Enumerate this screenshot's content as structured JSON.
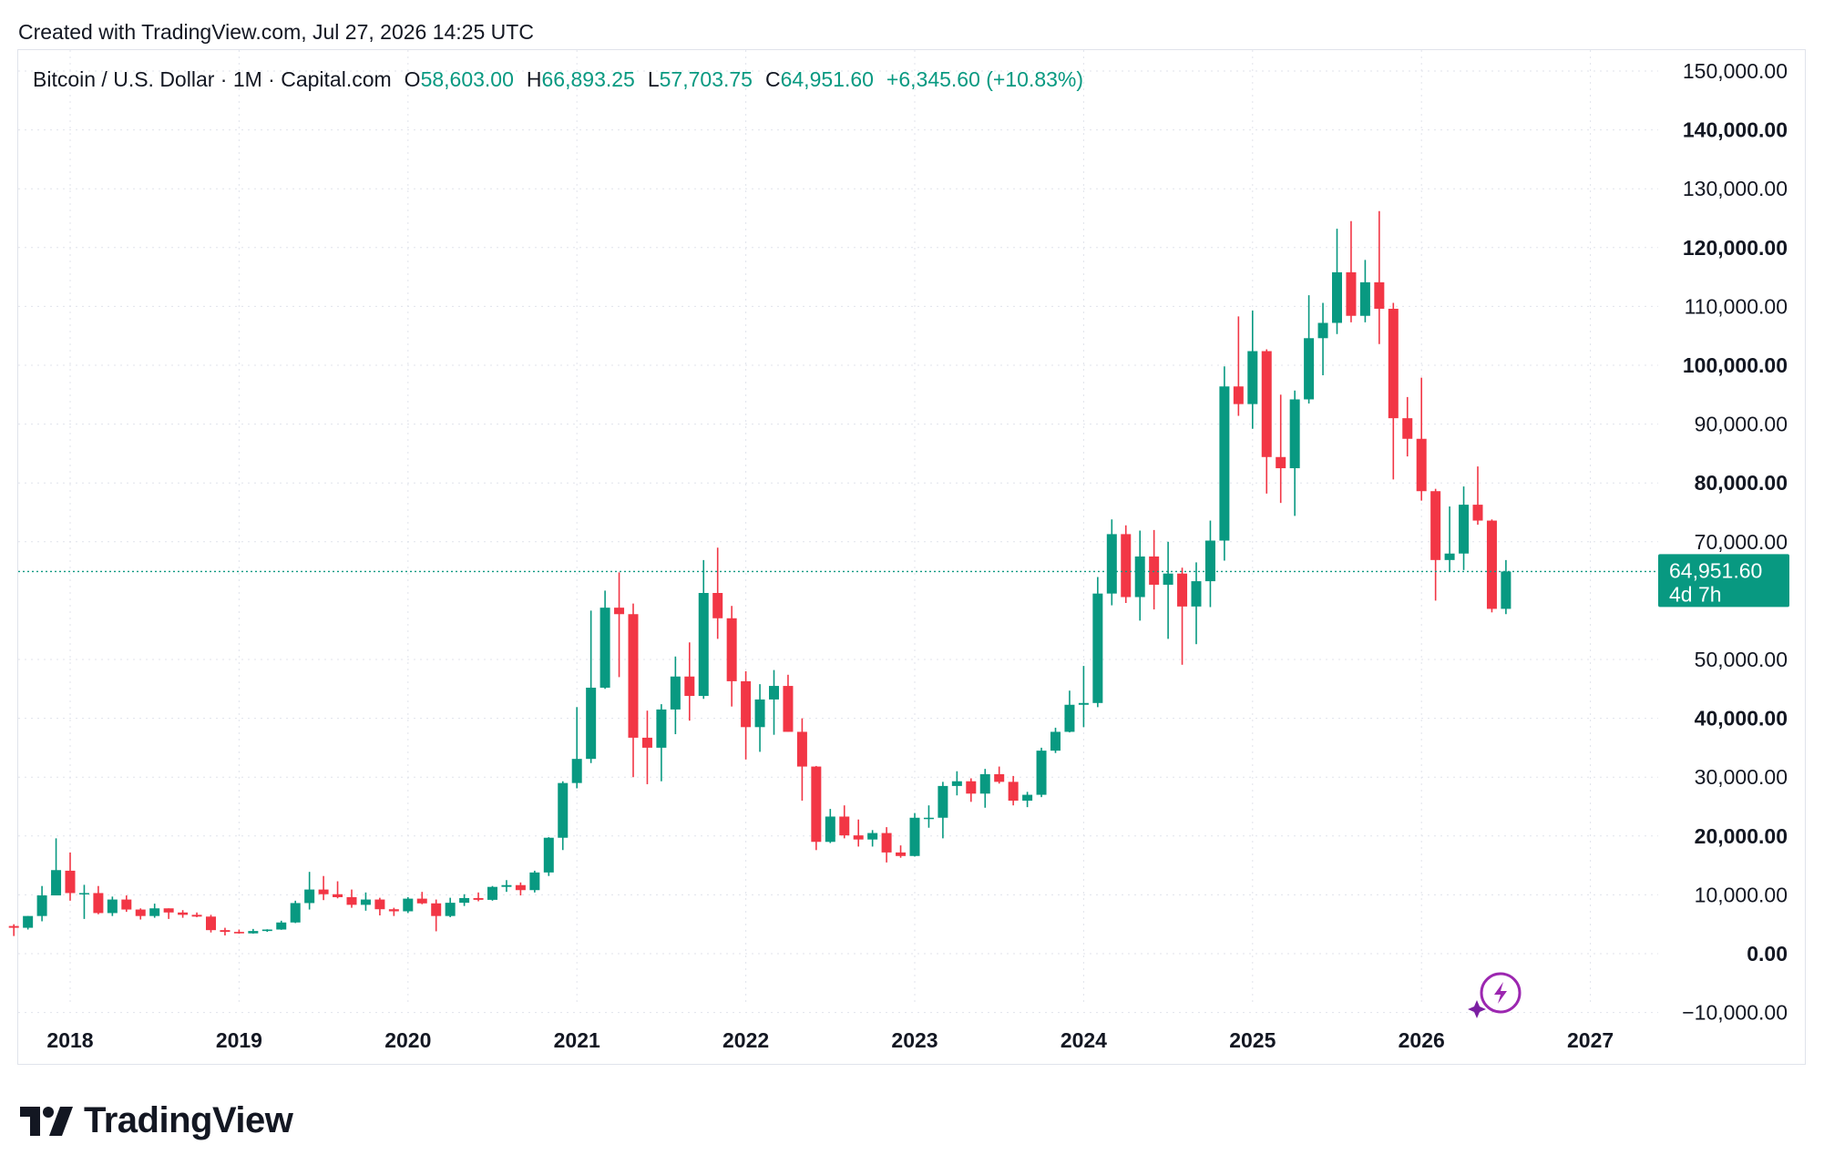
{
  "header": {
    "created": "Created with TradingView.com, Jul 27, 2026 14:25 UTC"
  },
  "legend": {
    "symbol": "Bitcoin / U.S. Dollar · 1M · Capital.com",
    "o_label": "O",
    "o_value": "58,603.00",
    "h_label": "H",
    "h_value": "66,893.25",
    "l_label": "L",
    "l_value": "57,703.75",
    "c_label": "C",
    "c_value": "64,951.60",
    "change": "+6,345.60 (+10.83%)"
  },
  "price_tag": {
    "price": "64,951.60",
    "countdown": "4d 7h"
  },
  "colors": {
    "up": "#089981",
    "down": "#f23645",
    "grid": "#e0e3eb",
    "text": "#131722",
    "assistant_icon": "#9c27b0"
  },
  "icons": {
    "assistant": "lightning-sparkle-icon",
    "brand": "tradingview-logo-icon"
  },
  "brand": {
    "name": "TradingView"
  },
  "chart_data": {
    "type": "candlestick",
    "title": "Bitcoin / U.S. Dollar · 1M · Capital.com",
    "ylim": [
      -10000,
      150000
    ],
    "yticks": [
      {
        "value": 150000,
        "label": "150,000.00",
        "bold": false
      },
      {
        "value": 140000,
        "label": "140,000.00",
        "bold": true
      },
      {
        "value": 130000,
        "label": "130,000.00",
        "bold": false
      },
      {
        "value": 120000,
        "label": "120,000.00",
        "bold": true
      },
      {
        "value": 110000,
        "label": "110,000.00",
        "bold": false
      },
      {
        "value": 100000,
        "label": "100,000.00",
        "bold": true
      },
      {
        "value": 90000,
        "label": "90,000.00",
        "bold": false
      },
      {
        "value": 80000,
        "label": "80,000.00",
        "bold": true
      },
      {
        "value": 70000,
        "label": "70,000.00",
        "bold": false
      },
      {
        "value": 50000,
        "label": "50,000.00",
        "bold": false
      },
      {
        "value": 40000,
        "label": "40,000.00",
        "bold": true
      },
      {
        "value": 30000,
        "label": "30,000.00",
        "bold": false
      },
      {
        "value": 20000,
        "label": "20,000.00",
        "bold": true
      },
      {
        "value": 10000,
        "label": "10,000.00",
        "bold": false
      },
      {
        "value": 0,
        "label": "0.00",
        "bold": true
      },
      {
        "value": -10000,
        "label": "−10,000.00",
        "bold": false
      }
    ],
    "xticks": [
      {
        "month": "2018-01",
        "label": "2018"
      },
      {
        "month": "2019-01",
        "label": "2019"
      },
      {
        "month": "2020-01",
        "label": "2020"
      },
      {
        "month": "2021-01",
        "label": "2021"
      },
      {
        "month": "2022-01",
        "label": "2022"
      },
      {
        "month": "2023-01",
        "label": "2023"
      },
      {
        "month": "2024-01",
        "label": "2024"
      },
      {
        "month": "2025-01",
        "label": "2025"
      },
      {
        "month": "2026-01",
        "label": "2026"
      },
      {
        "month": "2027-01",
        "label": "2027"
      }
    ],
    "last_price": 64951.6,
    "months_start": "2017-09",
    "candles": [
      {
        "m": "2017-09",
        "o": 4700,
        "h": 5000,
        "l": 3000,
        "c": 4400
      },
      {
        "m": "2017-10",
        "o": 4400,
        "h": 6400,
        "l": 4100,
        "c": 6400
      },
      {
        "m": "2017-11",
        "o": 6400,
        "h": 11500,
        "l": 5500,
        "c": 9900
      },
      {
        "m": "2017-12",
        "o": 9900,
        "h": 19600,
        "l": 10500,
        "c": 14200
      },
      {
        "m": "2018-01",
        "o": 14100,
        "h": 17200,
        "l": 9000,
        "c": 10300
      },
      {
        "m": "2018-02",
        "o": 10200,
        "h": 11700,
        "l": 5900,
        "c": 10300
      },
      {
        "m": "2018-03",
        "o": 10300,
        "h": 11500,
        "l": 6700,
        "c": 6900
      },
      {
        "m": "2018-04",
        "o": 6900,
        "h": 9700,
        "l": 6400,
        "c": 9200
      },
      {
        "m": "2018-05",
        "o": 9200,
        "h": 9900,
        "l": 7100,
        "c": 7500
      },
      {
        "m": "2018-06",
        "o": 7500,
        "h": 7700,
        "l": 5800,
        "c": 6400
      },
      {
        "m": "2018-07",
        "o": 6400,
        "h": 8500,
        "l": 6100,
        "c": 7700
      },
      {
        "m": "2018-08",
        "o": 7700,
        "h": 7700,
        "l": 5900,
        "c": 7000
      },
      {
        "m": "2018-09",
        "o": 7000,
        "h": 7400,
        "l": 6100,
        "c": 6600
      },
      {
        "m": "2018-10",
        "o": 6600,
        "h": 7000,
        "l": 6200,
        "c": 6300
      },
      {
        "m": "2018-11",
        "o": 6300,
        "h": 6600,
        "l": 3600,
        "c": 4000
      },
      {
        "m": "2018-12",
        "o": 4000,
        "h": 4400,
        "l": 3100,
        "c": 3700
      },
      {
        "m": "2019-01",
        "o": 3700,
        "h": 4100,
        "l": 3400,
        "c": 3450
      },
      {
        "m": "2019-02",
        "o": 3450,
        "h": 4200,
        "l": 3400,
        "c": 3850
      },
      {
        "m": "2019-03",
        "o": 3850,
        "h": 4150,
        "l": 3700,
        "c": 4100
      },
      {
        "m": "2019-04",
        "o": 4100,
        "h": 5600,
        "l": 4050,
        "c": 5300
      },
      {
        "m": "2019-05",
        "o": 5300,
        "h": 9000,
        "l": 5200,
        "c": 8600
      },
      {
        "m": "2019-06",
        "o": 8600,
        "h": 13900,
        "l": 7500,
        "c": 10900
      },
      {
        "m": "2019-07",
        "o": 10900,
        "h": 13200,
        "l": 9100,
        "c": 10100
      },
      {
        "m": "2019-08",
        "o": 10100,
        "h": 12300,
        "l": 9400,
        "c": 9600
      },
      {
        "m": "2019-09",
        "o": 9600,
        "h": 10900,
        "l": 7800,
        "c": 8300
      },
      {
        "m": "2019-10",
        "o": 8300,
        "h": 10400,
        "l": 7300,
        "c": 9200
      },
      {
        "m": "2019-11",
        "o": 9200,
        "h": 9500,
        "l": 6500,
        "c": 7550
      },
      {
        "m": "2019-12",
        "o": 7550,
        "h": 7800,
        "l": 6400,
        "c": 7200
      },
      {
        "m": "2020-01",
        "o": 7200,
        "h": 9600,
        "l": 6900,
        "c": 9350
      },
      {
        "m": "2020-02",
        "o": 9350,
        "h": 10500,
        "l": 8400,
        "c": 8550
      },
      {
        "m": "2020-03",
        "o": 8550,
        "h": 9200,
        "l": 3800,
        "c": 6400
      },
      {
        "m": "2020-04",
        "o": 6400,
        "h": 9500,
        "l": 6200,
        "c": 8650
      },
      {
        "m": "2020-05",
        "o": 8650,
        "h": 10100,
        "l": 8100,
        "c": 9450
      },
      {
        "m": "2020-06",
        "o": 9450,
        "h": 10400,
        "l": 8900,
        "c": 9150
      },
      {
        "m": "2020-07",
        "o": 9150,
        "h": 11500,
        "l": 9000,
        "c": 11350
      },
      {
        "m": "2020-08",
        "o": 11350,
        "h": 12500,
        "l": 10500,
        "c": 11650
      },
      {
        "m": "2020-09",
        "o": 11650,
        "h": 12100,
        "l": 9900,
        "c": 10800
      },
      {
        "m": "2020-10",
        "o": 10800,
        "h": 14100,
        "l": 10400,
        "c": 13800
      },
      {
        "m": "2020-11",
        "o": 13800,
        "h": 19800,
        "l": 13200,
        "c": 19700
      },
      {
        "m": "2020-12",
        "o": 19700,
        "h": 29300,
        "l": 17600,
        "c": 29000
      },
      {
        "m": "2021-01",
        "o": 29000,
        "h": 41900,
        "l": 28100,
        "c": 33100
      },
      {
        "m": "2021-02",
        "o": 33100,
        "h": 58300,
        "l": 32400,
        "c": 45200
      },
      {
        "m": "2021-03",
        "o": 45200,
        "h": 61700,
        "l": 45000,
        "c": 58800
      },
      {
        "m": "2021-04",
        "o": 58800,
        "h": 64800,
        "l": 47000,
        "c": 57700
      },
      {
        "m": "2021-05",
        "o": 57700,
        "h": 59500,
        "l": 30000,
        "c": 36700
      },
      {
        "m": "2021-06",
        "o": 36700,
        "h": 41300,
        "l": 28800,
        "c": 35000
      },
      {
        "m": "2021-07",
        "o": 35000,
        "h": 42400,
        "l": 29300,
        "c": 41500
      },
      {
        "m": "2021-08",
        "o": 41500,
        "h": 50500,
        "l": 37300,
        "c": 47100
      },
      {
        "m": "2021-09",
        "o": 47100,
        "h": 52900,
        "l": 39600,
        "c": 43800
      },
      {
        "m": "2021-10",
        "o": 43800,
        "h": 66900,
        "l": 43300,
        "c": 61300
      },
      {
        "m": "2021-11",
        "o": 61300,
        "h": 69000,
        "l": 53500,
        "c": 57000
      },
      {
        "m": "2021-12",
        "o": 57000,
        "h": 59100,
        "l": 42000,
        "c": 46300
      },
      {
        "m": "2022-01",
        "o": 46300,
        "h": 48000,
        "l": 33000,
        "c": 38500
      },
      {
        "m": "2022-02",
        "o": 38500,
        "h": 45800,
        "l": 34300,
        "c": 43200
      },
      {
        "m": "2022-03",
        "o": 43200,
        "h": 48200,
        "l": 37200,
        "c": 45500
      },
      {
        "m": "2022-04",
        "o": 45500,
        "h": 47400,
        "l": 37700,
        "c": 37700
      },
      {
        "m": "2022-05",
        "o": 37700,
        "h": 40000,
        "l": 26000,
        "c": 31800
      },
      {
        "m": "2022-06",
        "o": 31800,
        "h": 31900,
        "l": 17600,
        "c": 19000
      },
      {
        "m": "2022-07",
        "o": 19000,
        "h": 24600,
        "l": 18800,
        "c": 23300
      },
      {
        "m": "2022-08",
        "o": 23300,
        "h": 25200,
        "l": 19600,
        "c": 20100
      },
      {
        "m": "2022-09",
        "o": 20100,
        "h": 22800,
        "l": 18200,
        "c": 19400
      },
      {
        "m": "2022-10",
        "o": 19400,
        "h": 21000,
        "l": 18200,
        "c": 20500
      },
      {
        "m": "2022-11",
        "o": 20500,
        "h": 21500,
        "l": 15500,
        "c": 17200
      },
      {
        "m": "2022-12",
        "o": 17200,
        "h": 18400,
        "l": 16300,
        "c": 16600
      },
      {
        "m": "2023-01",
        "o": 16600,
        "h": 23900,
        "l": 16500,
        "c": 23100
      },
      {
        "m": "2023-02",
        "o": 23100,
        "h": 25200,
        "l": 21400,
        "c": 23100
      },
      {
        "m": "2023-03",
        "o": 23100,
        "h": 29200,
        "l": 19600,
        "c": 28500
      },
      {
        "m": "2023-04",
        "o": 28500,
        "h": 31000,
        "l": 26900,
        "c": 29300
      },
      {
        "m": "2023-05",
        "o": 29300,
        "h": 29800,
        "l": 25800,
        "c": 27200
      },
      {
        "m": "2023-06",
        "o": 27200,
        "h": 31400,
        "l": 24800,
        "c": 30500
      },
      {
        "m": "2023-07",
        "o": 30500,
        "h": 31800,
        "l": 28900,
        "c": 29200
      },
      {
        "m": "2023-08",
        "o": 29200,
        "h": 30200,
        "l": 25200,
        "c": 26000
      },
      {
        "m": "2023-09",
        "o": 26000,
        "h": 27500,
        "l": 24900,
        "c": 27000
      },
      {
        "m": "2023-10",
        "o": 27000,
        "h": 35000,
        "l": 26600,
        "c": 34500
      },
      {
        "m": "2023-11",
        "o": 34500,
        "h": 38400,
        "l": 34100,
        "c": 37700
      },
      {
        "m": "2023-12",
        "o": 37700,
        "h": 44700,
        "l": 37600,
        "c": 42300
      },
      {
        "m": "2024-01",
        "o": 42300,
        "h": 48900,
        "l": 38500,
        "c": 42600
      },
      {
        "m": "2024-02",
        "o": 42600,
        "h": 64000,
        "l": 41900,
        "c": 61200
      },
      {
        "m": "2024-03",
        "o": 61200,
        "h": 73800,
        "l": 59200,
        "c": 71300
      },
      {
        "m": "2024-04",
        "o": 71300,
        "h": 72800,
        "l": 59600,
        "c": 60600
      },
      {
        "m": "2024-05",
        "o": 60600,
        "h": 71900,
        "l": 56600,
        "c": 67500
      },
      {
        "m": "2024-06",
        "o": 67500,
        "h": 72000,
        "l": 58500,
        "c": 62700
      },
      {
        "m": "2024-07",
        "o": 62700,
        "h": 70000,
        "l": 53500,
        "c": 64600
      },
      {
        "m": "2024-08",
        "o": 64600,
        "h": 65600,
        "l": 49100,
        "c": 59000
      },
      {
        "m": "2024-09",
        "o": 59000,
        "h": 66500,
        "l": 52600,
        "c": 63300
      },
      {
        "m": "2024-10",
        "o": 63300,
        "h": 73600,
        "l": 58900,
        "c": 70200
      },
      {
        "m": "2024-11",
        "o": 70200,
        "h": 99800,
        "l": 66800,
        "c": 96400
      },
      {
        "m": "2024-12",
        "o": 96400,
        "h": 108300,
        "l": 91400,
        "c": 93400
      },
      {
        "m": "2025-01",
        "o": 93400,
        "h": 109300,
        "l": 89200,
        "c": 102400
      },
      {
        "m": "2025-02",
        "o": 102400,
        "h": 102700,
        "l": 78200,
        "c": 84400
      },
      {
        "m": "2025-03",
        "o": 84400,
        "h": 95000,
        "l": 76600,
        "c": 82500
      },
      {
        "m": "2025-04",
        "o": 82500,
        "h": 95700,
        "l": 74400,
        "c": 94200
      },
      {
        "m": "2025-05",
        "o": 94200,
        "h": 111900,
        "l": 93500,
        "c": 104600
      },
      {
        "m": "2025-06",
        "o": 104600,
        "h": 110600,
        "l": 98300,
        "c": 107200
      },
      {
        "m": "2025-07",
        "o": 107200,
        "h": 123200,
        "l": 105300,
        "c": 115800
      },
      {
        "m": "2025-08",
        "o": 115800,
        "h": 124500,
        "l": 107300,
        "c": 108400
      },
      {
        "m": "2025-09",
        "o": 108400,
        "h": 117900,
        "l": 107300,
        "c": 114100
      },
      {
        "m": "2025-10",
        "o": 114100,
        "h": 126200,
        "l": 103600,
        "c": 109600
      },
      {
        "m": "2025-11",
        "o": 109600,
        "h": 110600,
        "l": 80600,
        "c": 91000
      },
      {
        "m": "2025-12",
        "o": 91000,
        "h": 94600,
        "l": 84500,
        "c": 87500
      },
      {
        "m": "2026-01",
        "o": 87500,
        "h": 97900,
        "l": 77000,
        "c": 78600
      },
      {
        "m": "2026-02",
        "o": 78600,
        "h": 79000,
        "l": 60000,
        "c": 66900
      },
      {
        "m": "2026-03",
        "o": 66900,
        "h": 76000,
        "l": 65000,
        "c": 68000
      },
      {
        "m": "2026-04",
        "o": 68000,
        "h": 79400,
        "l": 65200,
        "c": 76300
      },
      {
        "m": "2026-05",
        "o": 76300,
        "h": 82800,
        "l": 72900,
        "c": 73600
      },
      {
        "m": "2026-06",
        "o": 73600,
        "h": 73800,
        "l": 58000,
        "c": 58600
      },
      {
        "m": "2026-07",
        "o": 58603,
        "h": 66893.25,
        "l": 57703.75,
        "c": 64951.6
      }
    ]
  }
}
